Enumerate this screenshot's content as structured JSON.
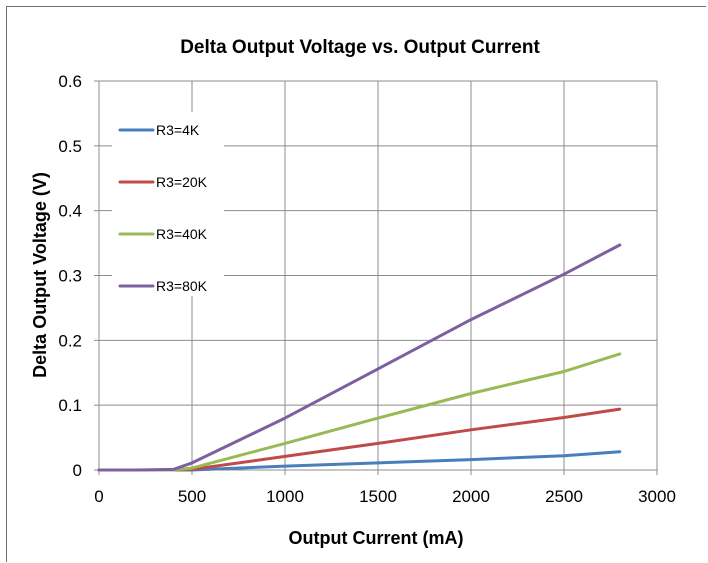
{
  "chart_data": {
    "type": "line",
    "title": "Delta Output Voltage vs. Output Current",
    "xlabel": "Output Current (mA)",
    "ylabel": "Delta Output Voltage (V)",
    "xlim": [
      0,
      3000
    ],
    "ylim": [
      0,
      0.6
    ],
    "x_ticks": [
      0,
      500,
      1000,
      1500,
      2000,
      2500,
      3000
    ],
    "y_ticks": [
      0,
      0.1,
      0.2,
      0.3,
      0.4,
      0.5,
      0.6
    ],
    "x_tick_labels": [
      "0",
      "500",
      "1000",
      "1500",
      "2000",
      "2500",
      "3000"
    ],
    "y_tick_labels": [
      "0",
      "0.1",
      "0.2",
      "0.3",
      "0.4",
      "0.5",
      "0.6"
    ],
    "grid": true,
    "legend_position": "top-left",
    "series": [
      {
        "name": "R3=4K",
        "color": "#4a7ebb",
        "x": [
          0,
          200,
          400,
          500,
          1000,
          1500,
          2000,
          2500,
          2800
        ],
        "y": [
          0,
          0,
          0,
          0,
          0.006,
          0.011,
          0.016,
          0.022,
          0.028
        ]
      },
      {
        "name": "R3=20K",
        "color": "#be4b48",
        "x": [
          0,
          200,
          400,
          500,
          1000,
          1500,
          2000,
          2500,
          2800
        ],
        "y": [
          0,
          0,
          0,
          0.001,
          0.021,
          0.041,
          0.062,
          0.081,
          0.094
        ]
      },
      {
        "name": "R3=40K",
        "color": "#98b954",
        "x": [
          0,
          200,
          400,
          500,
          1000,
          1500,
          2000,
          2500,
          2800
        ],
        "y": [
          0,
          0,
          0,
          0.003,
          0.041,
          0.08,
          0.118,
          0.152,
          0.179
        ]
      },
      {
        "name": "R3=80K",
        "color": "#7d60a0",
        "x": [
          0,
          200,
          400,
          500,
          1000,
          1500,
          2000,
          2500,
          2800
        ],
        "y": [
          0,
          0,
          0.001,
          0.011,
          0.08,
          0.156,
          0.232,
          0.302,
          0.347
        ]
      }
    ]
  }
}
